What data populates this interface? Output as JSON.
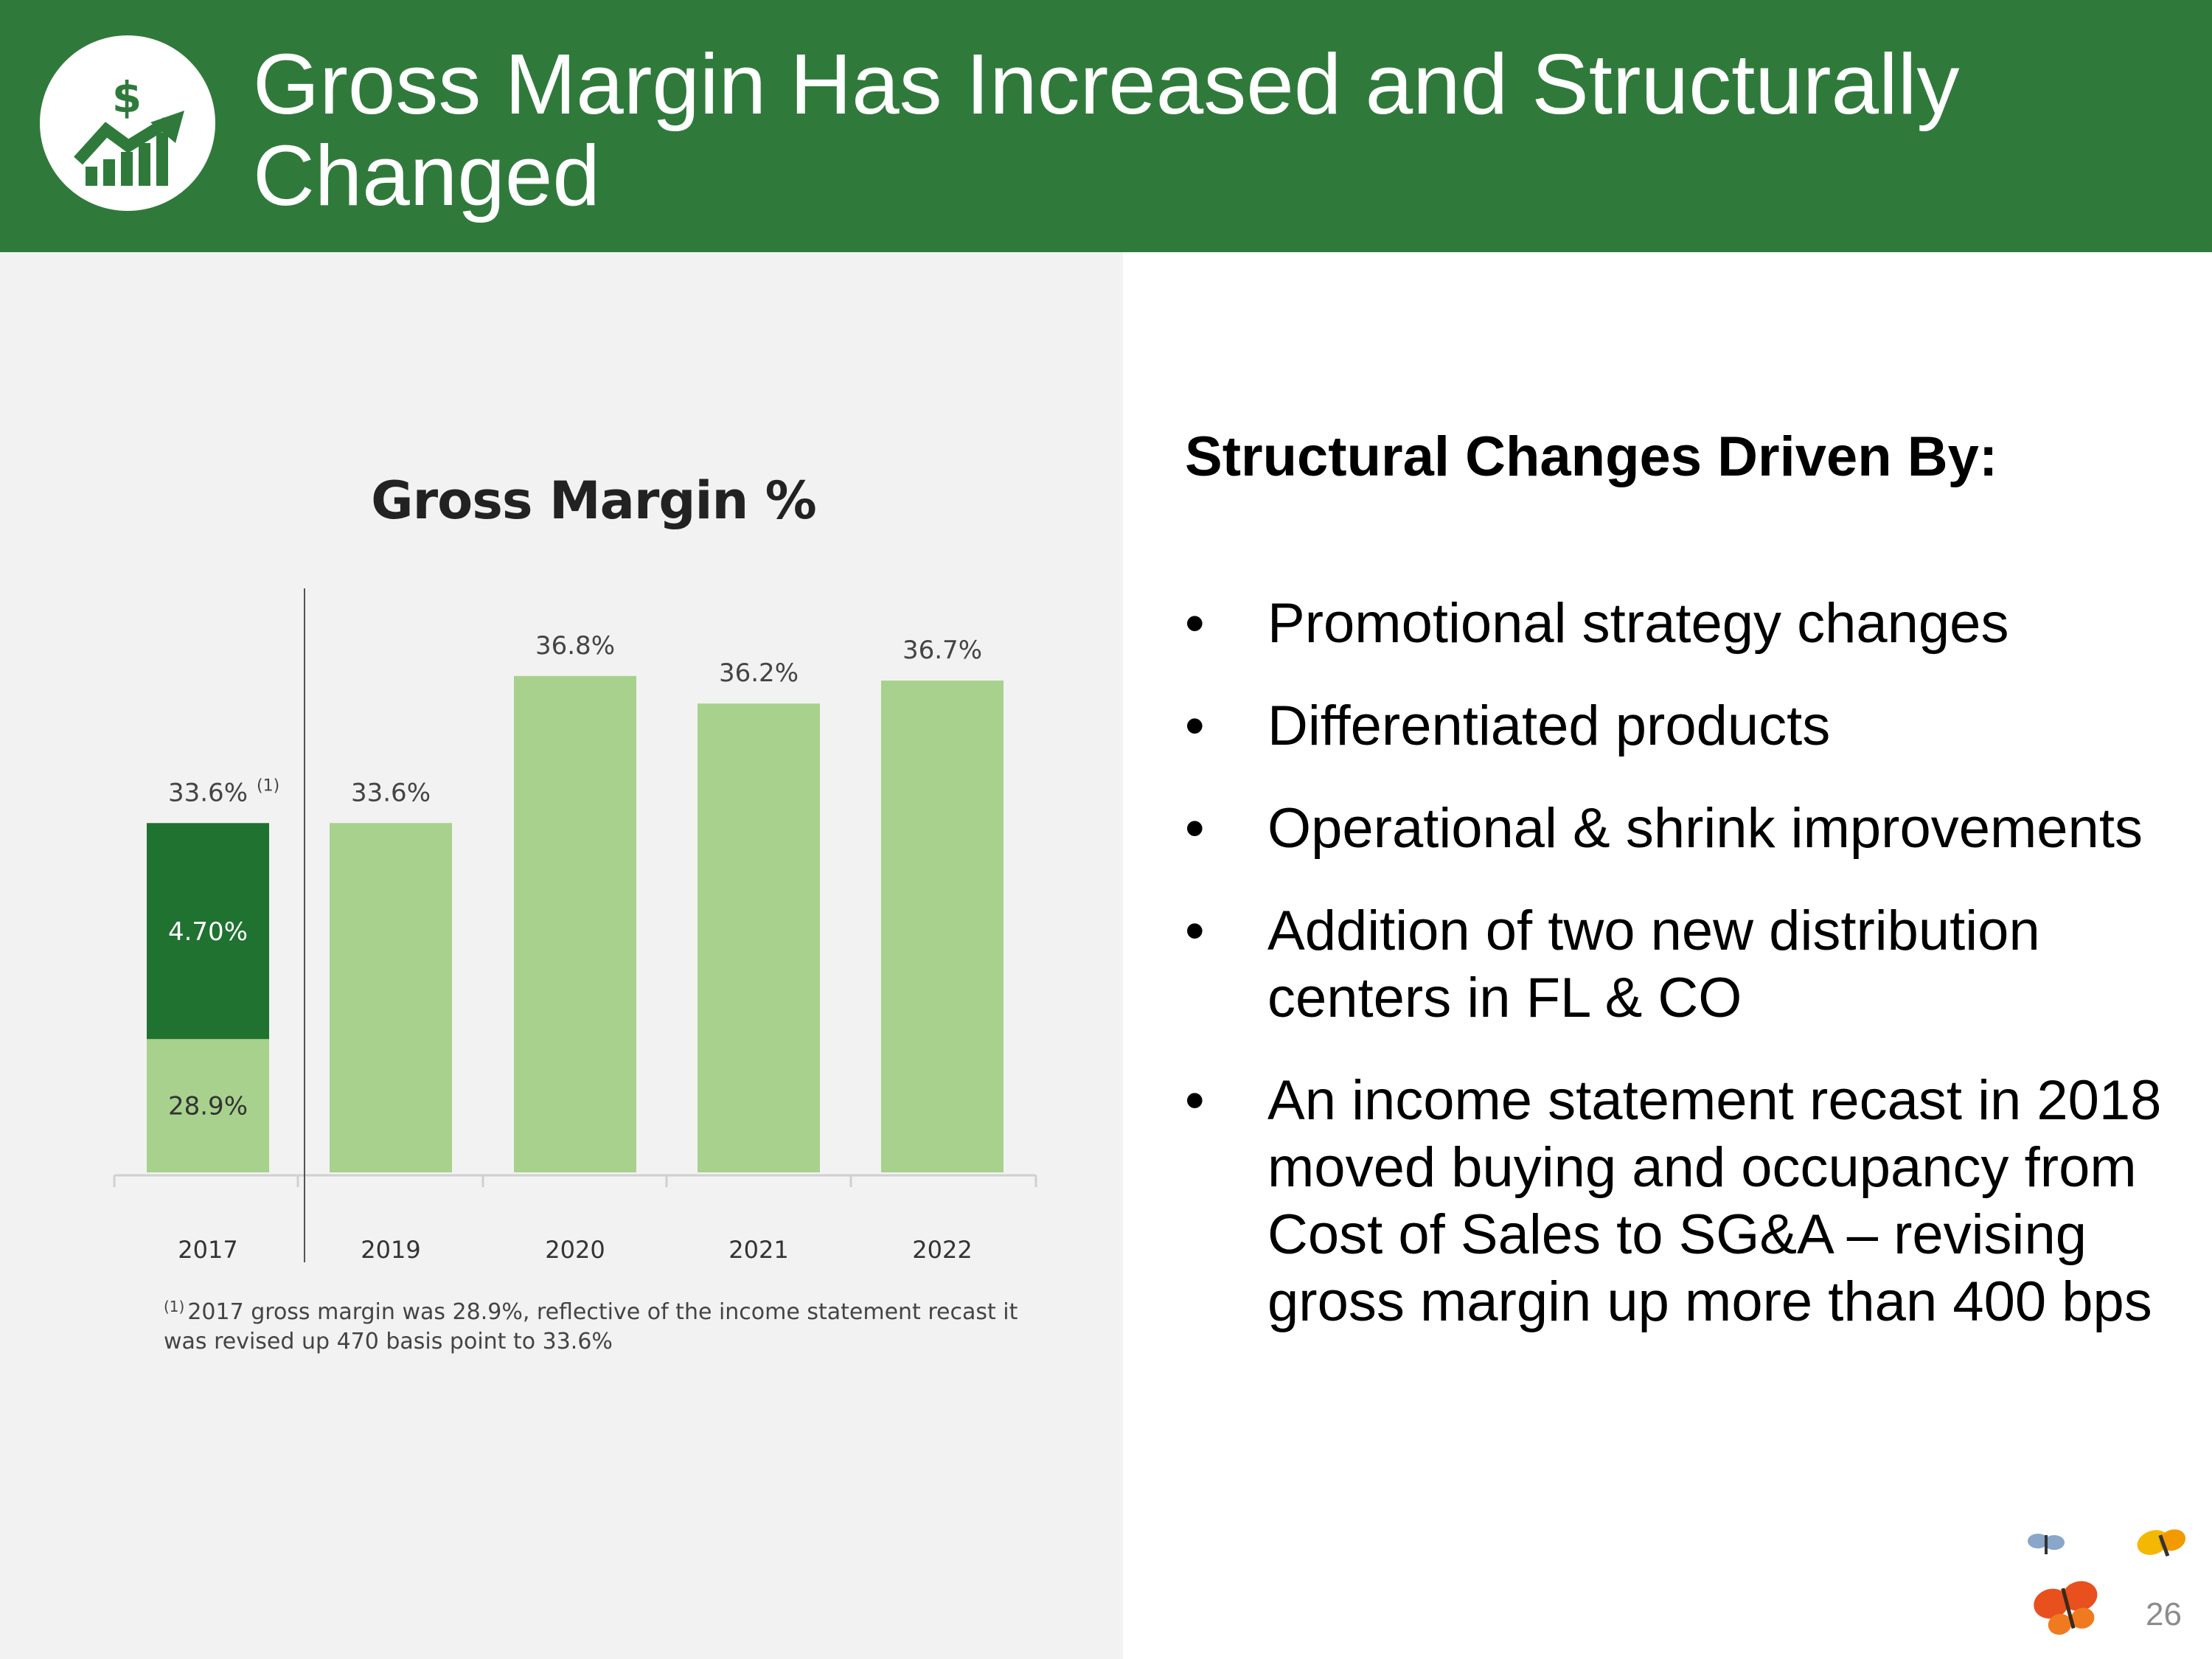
{
  "header": {
    "title": "Gross Margin Has Increased and Structurally Changed",
    "icon": "growth-chart-dollar-icon",
    "bg_color": "#2f7a3b"
  },
  "chart_data": {
    "type": "bar",
    "title": "Gross Margin %",
    "categories": [
      "2017",
      "2019",
      "2020",
      "2021",
      "2022"
    ],
    "values": [
      33.6,
      33.6,
      36.8,
      36.2,
      36.7
    ],
    "value_labels": [
      "33.6%",
      "33.6%",
      "36.8%",
      "36.2%",
      "36.7%"
    ],
    "label_superscripts": [
      "(1)",
      "",
      "",
      "",
      ""
    ],
    "stacked_2017": {
      "base": 28.9,
      "base_label": "28.9%",
      "addition": 4.7,
      "addition_label": "4.70%"
    },
    "ylim": [
      26,
      38
    ],
    "colors": {
      "light": "#a8d18d",
      "dark": "#1f7230"
    },
    "xlabel": "",
    "ylabel": ""
  },
  "footnote": {
    "marker": "(1)",
    "text": "2017 gross margin was 28.9%, reflective of the income statement recast it was revised up 470 basis point to 33.6%"
  },
  "right": {
    "heading": "Structural Changes Driven By:",
    "bullets": [
      "Promotional strategy changes",
      "Differentiated products",
      "Operational  & shrink improvements",
      "Addition of two new distribution centers in FL & CO",
      "An income statement recast in 2018 moved buying and occupancy from Cost of Sales to SG&A – revising gross margin up more than 400 bps"
    ]
  },
  "decor": {
    "icon": "butterflies-icon"
  },
  "page_number": "26"
}
